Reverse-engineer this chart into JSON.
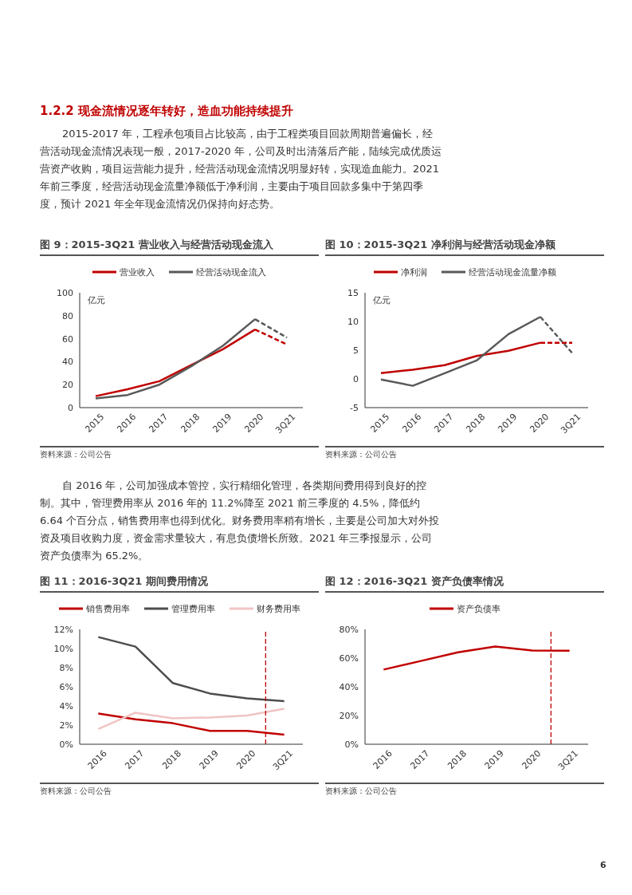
{
  "chart_data": [
    {
      "type": "line",
      "title": "图 9：2015-3Q21 营业收入与经营活动现金流入",
      "ylabel": "亿元",
      "categories": [
        "2015",
        "2016",
        "2017",
        "2018",
        "2019",
        "2020",
        "3Q21"
      ],
      "series": [
        {
          "name": "营业收入",
          "color": "#c00000",
          "values": [
            10,
            16,
            23,
            37,
            51,
            68,
            null
          ]
        },
        {
          "name": "经营活动现金流入",
          "color": "#595959",
          "values": [
            8,
            11,
            20,
            36,
            54,
            77,
            null
          ]
        },
        {
          "color": "#c00000",
          "line_style": "dashed",
          "values": [
            null,
            null,
            null,
            null,
            null,
            68,
            55
          ]
        },
        {
          "color": "#595959",
          "line_style": "dashed",
          "values": [
            null,
            null,
            null,
            null,
            null,
            77,
            61
          ]
        }
      ],
      "ylim": [
        0,
        100
      ],
      "yticks": [
        0,
        20,
        40,
        60,
        80,
        100
      ],
      "legend": "top",
      "marker": "none",
      "annotations": [
        "1.2.2 现金流情况逐年转好，造血功能持续提升",
        "2015-2017 年，工程承包项目占比较高，由于工程类项目回款周期普遍偏长，经营活动现金流情况表现一般，2017-2020 年，公司及时出清落后产能，陆续完成优质运营资产收购，项目运营能力提升，经营活动现金流情况明显好转，实现造血能力。2021 年前三季度，经营活动现金流量净额低于净利润，主要由于项目回款多集中于第四季度，预计 2021 年全年现金流情况仍保持向好态势。",
        "资料来源：公司公告"
      ]
    },
    {
      "type": "line",
      "title": "图 10：2015-3Q21 净利润与经营活动现金净额",
      "ylabel": "亿元",
      "categories": [
        "2015",
        "2016",
        "2017",
        "2018",
        "2019",
        "2020",
        "3Q21"
      ],
      "series": [
        {
          "name": "净利润",
          "color": "#c00000",
          "values": [
            1.0,
            1.6,
            2.4,
            4.0,
            4.9,
            6.3,
            null
          ]
        },
        {
          "name": "经营活动现金流量净额",
          "color": "#595959",
          "values": [
            -0.1,
            -1.2,
            1.0,
            3.2,
            7.8,
            10.8,
            null
          ]
        },
        {
          "color": "#c00000",
          "line_style": "dashed",
          "values": [
            null,
            null,
            null,
            null,
            null,
            6.3,
            6.3
          ]
        },
        {
          "color": "#595959",
          "line_style": "dashed",
          "values": [
            null,
            null,
            null,
            null,
            null,
            10.8,
            4.5
          ]
        }
      ],
      "ylim": [
        -5,
        15
      ],
      "yticks": [
        -5,
        0,
        5,
        10,
        15
      ],
      "legend": "top",
      "marker": "none",
      "annotations": [
        "资料来源：公司公告"
      ]
    },
    {
      "type": "line",
      "title": "图 11：2016-3Q21 期间费用情况",
      "categories": [
        "2016",
        "2017",
        "2018",
        "2019",
        "2020",
        "3Q21"
      ],
      "series": [
        {
          "name": "销售费用率",
          "color": "#c00000",
          "values": [
            3.2,
            2.6,
            2.2,
            1.4,
            1.4,
            1.0
          ]
        },
        {
          "name": "管理费用率",
          "color": "#4d4d4d",
          "values": [
            11.2,
            10.2,
            6.4,
            5.3,
            4.8,
            4.5
          ]
        },
        {
          "name": "财务费用率",
          "color": "#f0c4c4",
          "values": [
            1.6,
            3.3,
            2.7,
            2.8,
            3.0,
            3.7
          ]
        }
      ],
      "ylim": [
        0,
        12
      ],
      "yticks": [
        {
          "value": 0,
          "label": "0%"
        },
        {
          "value": 2,
          "label": "2%"
        },
        {
          "value": 4,
          "label": "4%"
        },
        {
          "value": 6,
          "label": "6%"
        },
        {
          "value": 8,
          "label": "8%"
        },
        {
          "value": 10,
          "label": "10%"
        },
        {
          "value": 12,
          "label": "12%"
        }
      ],
      "ref_lines": [
        {
          "axis": "x",
          "value": "3Q21",
          "color": "#c00000",
          "line_style": "dashed"
        }
      ],
      "legend": "top",
      "marker": "none",
      "annotations": [
        "自 2016 年，公司加强成本管控，实行精细化管理，各类期间费用得到良好的控制。其中，管理费用率从 2016 年的 11.2%降至 2021 前三季度的 4.5%，降低约 6.64 个百分点，销售费用率也得到优化。财务费用率稍有增长，主要是公司加大对外投资及项目收购力度，资金需求量较大，有息负债增长所致。2021 年三季报显示，公司资产负债率为 65.2%。",
        "资料来源：公司公告"
      ]
    },
    {
      "type": "line",
      "title": "图 12：2016-3Q21 资产负债率情况",
      "categories": [
        "2016",
        "2017",
        "2018",
        "2019",
        "2020",
        "3Q21"
      ],
      "series": [
        {
          "name": "资产负债率",
          "color": "#c00000",
          "values": [
            52,
            58,
            64,
            68,
            65.3,
            65.2
          ]
        }
      ],
      "ylim": [
        0,
        80
      ],
      "yticks": [
        {
          "value": 0,
          "label": "0%"
        },
        {
          "value": 20,
          "label": "20%"
        },
        {
          "value": 40,
          "label": "40%"
        },
        {
          "value": 60,
          "label": "60%"
        },
        {
          "value": 80,
          "label": "80%"
        }
      ],
      "ref_lines": [
        {
          "axis": "x",
          "value": "3Q21",
          "color": "#c00000",
          "line_style": "dashed"
        }
      ],
      "legend": "top",
      "marker": "none",
      "annotations": [
        "资料来源：公司公告",
        "6"
      ]
    }
  ]
}
